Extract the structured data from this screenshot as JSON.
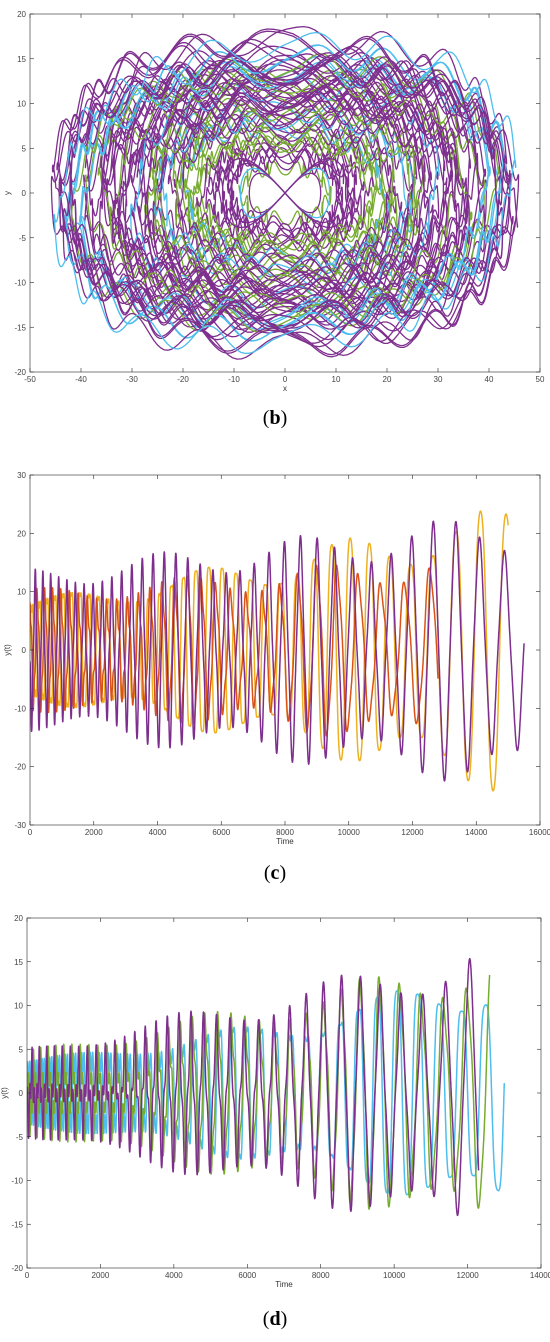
{
  "figures": [
    {
      "caption_prefix": "(",
      "caption_letter": "b",
      "caption_suffix": ")"
    },
    {
      "caption_prefix": "(",
      "caption_letter": "c",
      "caption_suffix": ")"
    },
    {
      "caption_prefix": "(",
      "caption_letter": "d",
      "caption_suffix": ")"
    }
  ],
  "chart_data": [
    {
      "type": "line",
      "title": "",
      "xlabel": "x",
      "ylabel": "y",
      "xlim": [
        -50,
        50
      ],
      "ylim": [
        -20,
        20
      ],
      "xticks": [
        "-50",
        "-40",
        "-30",
        "-20",
        "-10",
        "0",
        "10",
        "20",
        "30",
        "40",
        "50"
      ],
      "yticks": [
        "-20",
        "-15",
        "-10",
        "-5",
        "0",
        "5",
        "10",
        "15",
        "20"
      ],
      "grid": false,
      "colors": [
        "#4dbeee",
        "#77ac30",
        "#7e2f8e"
      ],
      "description_series": [
        {
          "color": "#4dbeee",
          "outer_x_extent": [
            -46,
            47
          ],
          "outer_y_extent": [
            -17,
            17
          ]
        },
        {
          "color": "#77ac30",
          "outer_x_extent": [
            -44,
            45
          ],
          "outer_y_extent": [
            -16,
            16
          ]
        },
        {
          "color": "#7e2f8e",
          "outer_x_extent": [
            -45,
            46
          ],
          "outer_y_extent": [
            -17,
            17
          ]
        }
      ]
    },
    {
      "type": "line",
      "title": "",
      "xlabel": "Time",
      "ylabel": "y(t)",
      "xlim": [
        0,
        16000
      ],
      "ylim": [
        -30,
        30
      ],
      "xticks": [
        "0",
        "2000",
        "4000",
        "6000",
        "8000",
        "10000",
        "12000",
        "14000",
        "16000"
      ],
      "yticks": [
        "-30",
        "-20",
        "-10",
        "0",
        "10",
        "20",
        "30"
      ],
      "grid": false,
      "series": [
        {
          "color": "#edb120",
          "x_end": 15000,
          "amplitude_start": 10,
          "amplitude_end": 26
        },
        {
          "color": "#d95319",
          "x_end": 12800,
          "amplitude_start": 9,
          "amplitude_end": 16
        },
        {
          "color": "#7e2f8e",
          "x_end": 15500,
          "amplitude_start": 12,
          "amplitude_end": 23
        }
      ]
    },
    {
      "type": "line",
      "title": "",
      "xlabel": "Time",
      "ylabel": "y(t)",
      "xlim": [
        0,
        14000
      ],
      "ylim": [
        -20,
        20
      ],
      "xticks": [
        "0",
        "2000",
        "4000",
        "6000",
        "8000",
        "10000",
        "12000",
        "14000"
      ],
      "yticks": [
        "-20",
        "-15",
        "-10",
        "-5",
        "0",
        "5",
        "10",
        "15",
        "20"
      ],
      "grid": false,
      "series": [
        {
          "color": "#4dbeee",
          "x_end": 13000,
          "amplitude_start": 3,
          "amplitude_end": 16
        },
        {
          "color": "#77ac30",
          "x_end": 12600,
          "amplitude_start": 3,
          "amplitude_end": 16
        },
        {
          "color": "#7e2f8e",
          "x_end": 12300,
          "amplitude_start": 3,
          "amplitude_end": 16
        }
      ]
    }
  ]
}
